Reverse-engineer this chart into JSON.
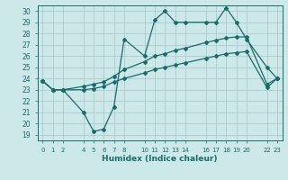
{
  "xlabel": "Humidex (Indice chaleur)",
  "bg_color": "#cce8e8",
  "grid_color": "#aacccc",
  "line_color": "#1a6b6b",
  "xlim": [
    -0.5,
    23.5
  ],
  "ylim": [
    18.5,
    30.5
  ],
  "yticks": [
    19,
    20,
    21,
    22,
    23,
    24,
    25,
    26,
    27,
    28,
    29,
    30
  ],
  "xtick_positions": [
    0,
    1,
    2,
    4,
    5,
    6,
    7,
    8,
    10,
    11,
    12,
    13,
    14,
    16,
    17,
    18,
    19,
    20,
    22,
    23
  ],
  "xtick_labels": [
    "0",
    "1",
    "2",
    "4",
    "5",
    "6",
    "7",
    "8",
    "10",
    "11",
    "12",
    "13",
    "14",
    "16",
    "17",
    "18",
    "19",
    "20",
    "22",
    "23"
  ],
  "line1_x": [
    0,
    1,
    2,
    4,
    5,
    6,
    7,
    8,
    10,
    11,
    12,
    13,
    14,
    16,
    17,
    18,
    19,
    20,
    22,
    23
  ],
  "line1_y": [
    23.8,
    23.0,
    23.0,
    21.0,
    19.3,
    19.5,
    21.5,
    27.5,
    26.0,
    29.2,
    30.0,
    29.0,
    29.0,
    29.0,
    29.0,
    30.3,
    29.0,
    27.5,
    25.0,
    24.0
  ],
  "line2_x": [
    0,
    1,
    2,
    4,
    5,
    6,
    7,
    8,
    10,
    11,
    12,
    13,
    14,
    16,
    17,
    18,
    19,
    20,
    22,
    23
  ],
  "line2_y": [
    23.8,
    23.0,
    23.0,
    23.3,
    23.5,
    23.7,
    24.2,
    24.8,
    25.5,
    26.0,
    26.2,
    26.5,
    26.7,
    27.2,
    27.4,
    27.6,
    27.7,
    27.7,
    23.5,
    24.0
  ],
  "line3_x": [
    0,
    1,
    2,
    4,
    5,
    6,
    7,
    8,
    10,
    11,
    12,
    13,
    14,
    16,
    17,
    18,
    19,
    20,
    22,
    23
  ],
  "line3_y": [
    23.8,
    23.0,
    23.0,
    23.0,
    23.1,
    23.3,
    23.7,
    24.0,
    24.5,
    24.8,
    25.0,
    25.2,
    25.4,
    25.8,
    26.0,
    26.2,
    26.3,
    26.4,
    23.2,
    24.0
  ]
}
